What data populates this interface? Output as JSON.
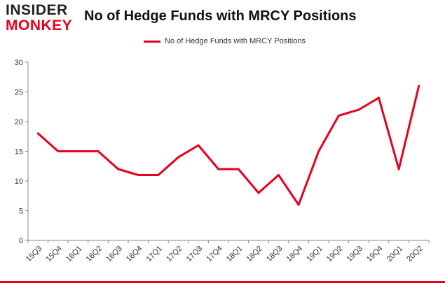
{
  "logo": {
    "top": "INSIDER",
    "bottom": "MONKEY"
  },
  "colors": {
    "series": "#e8001c",
    "axis": "#888888",
    "grid": "#dddddd",
    "brand": "#e8001c"
  },
  "chart_data": {
    "type": "line",
    "title": "No of Hedge Funds with MRCY Positions",
    "xlabel": "",
    "ylabel": "",
    "ylim": [
      0,
      30
    ],
    "yticks": [
      0,
      5,
      10,
      15,
      20,
      25,
      30
    ],
    "grid": false,
    "legend_position": "top-center",
    "categories": [
      "15Q3",
      "15Q4",
      "16Q1",
      "16Q2",
      "16Q3",
      "16Q4",
      "17Q1",
      "17Q2",
      "17Q3",
      "17Q4",
      "18Q1",
      "18Q2",
      "18Q3",
      "18Q4",
      "19Q1",
      "19Q2",
      "19Q3",
      "19Q4",
      "20Q1",
      "20Q2"
    ],
    "series": [
      {
        "name": "No of Hedge Funds with MRCY Positions",
        "values": [
          18,
          15,
          15,
          15,
          12,
          11,
          11,
          14,
          16,
          12,
          12,
          8,
          11,
          6,
          15,
          21,
          22,
          24,
          12,
          26
        ]
      }
    ]
  }
}
